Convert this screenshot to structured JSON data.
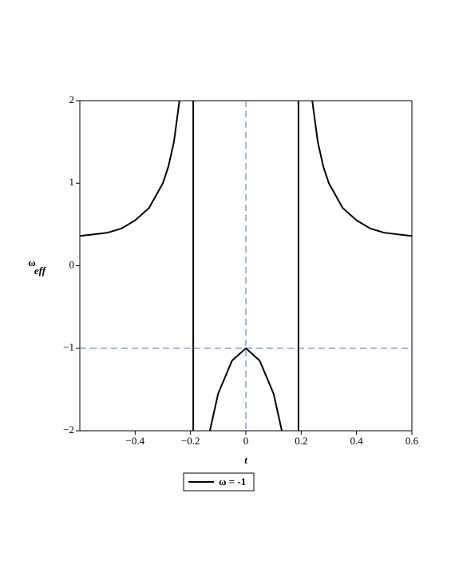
{
  "chart_data": {
    "type": "line",
    "xlabel": "t",
    "ylabel": "ω",
    "ylabel_sub": "eff",
    "x": [
      -0.6,
      -0.5,
      -0.45,
      -0.4,
      -0.35,
      -0.3,
      -0.28,
      -0.26,
      -0.24,
      -0.215,
      -0.19,
      -0.19,
      -0.16,
      -0.13,
      -0.1,
      -0.05,
      0,
      0.05,
      0.1,
      0.13,
      0.16,
      0.19,
      0.19,
      0.215,
      0.24,
      0.26,
      0.28,
      0.3,
      0.35,
      0.4,
      0.45,
      0.5,
      0.6
    ],
    "series": [
      {
        "name": "ω = -1",
        "color": "#000000",
        "values": [
          0.36,
          0.4,
          0.45,
          0.55,
          0.7,
          1.0,
          1.2,
          1.5,
          2.0,
          null,
          2,
          -2,
          null,
          -2,
          -1.55,
          -1.15,
          -1,
          -1.15,
          -1.55,
          -2,
          null,
          -2,
          2,
          null,
          2.0,
          1.5,
          1.2,
          1.0,
          0.7,
          0.55,
          0.45,
          0.4,
          0.36
        ]
      }
    ],
    "xlim": [
      -0.6,
      0.6
    ],
    "ylim": [
      -2,
      2
    ],
    "xticks": [
      {
        "value": -0.4,
        "label": "−0.4"
      },
      {
        "value": -0.2,
        "label": "−0.2"
      },
      0,
      0.2,
      0.4,
      0.6
    ],
    "yticks": [
      {
        "value": -2,
        "label": "−2"
      },
      {
        "value": -1,
        "label": "−1"
      },
      0,
      1,
      2
    ],
    "hlines": [
      -1
    ],
    "vlines": [
      0
    ],
    "ref_color": "#3f6fd6",
    "grid": false
  }
}
